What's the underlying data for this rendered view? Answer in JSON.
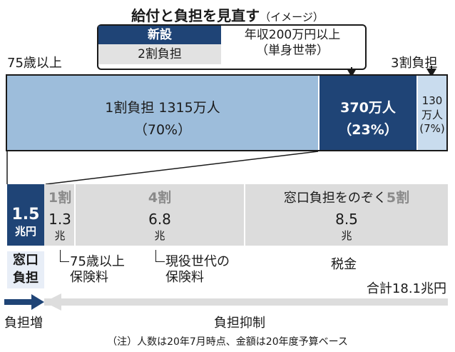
{
  "title": {
    "main": "給付と負担を見直す",
    "sub": "（イメージ）"
  },
  "legend": {
    "new_label": "新設",
    "two_label": "2割負担",
    "income_line1": "年収200万円以上",
    "income_line2": "（単身世帯）"
  },
  "labels": {
    "age75": "75歳以上",
    "three_wari": "3割負担"
  },
  "chart_data": [
    {
      "type": "bar",
      "orientation": "horizontal-stacked",
      "series": [
        {
          "text_line1": "1割負担 1315万人",
          "text_line2": "（70%）",
          "value": 1315,
          "unit": "万人",
          "share": 70,
          "color": "#9dbddb"
        },
        {
          "text_line1": "370万人",
          "text_line2": "（23%）",
          "value": 370,
          "unit": "万人",
          "share": 23,
          "color": "#1f4476"
        },
        {
          "text_line1": "130",
          "text_line2": "万人",
          "text_line3": "(7%)",
          "value": 130,
          "unit": "万人",
          "share": 7,
          "color": "#c9dcee"
        }
      ]
    },
    {
      "type": "bar",
      "orientation": "horizontal-stacked",
      "series": [
        {
          "value_label": "1.5",
          "unit": "兆円",
          "value": 1.5,
          "color": "#1f4476"
        },
        {
          "ratio_label": "1割",
          "value_label": "1.3",
          "unit": "兆",
          "value": 1.3,
          "note_line1": "75歳以上",
          "note_line2": "保険料"
        },
        {
          "ratio_label": "4割",
          "value_label": "6.8",
          "unit": "兆",
          "value": 6.8,
          "note_line1": "現役世代の",
          "note_line2": "保険料"
        },
        {
          "ratio_prefix": "窓口負担をのぞく",
          "ratio_label": "5割",
          "value_label": "8.5",
          "unit": "兆",
          "value": 8.5,
          "note_line1": "税金"
        }
      ],
      "total": "合計18.1兆円"
    }
  ],
  "window_label": {
    "line1": "窓口",
    "line2": "負担"
  },
  "arrows": {
    "left_label": "負担増",
    "right_label": "負担抑制"
  },
  "footnote": "（注）人数は20年7月時点、金額は20年度予算ベース",
  "colors": {
    "dark_blue": "#1f4476",
    "light_blue": "#9dbddb",
    "pale_blue": "#c9dcee",
    "gray": "#dcdcdc"
  }
}
